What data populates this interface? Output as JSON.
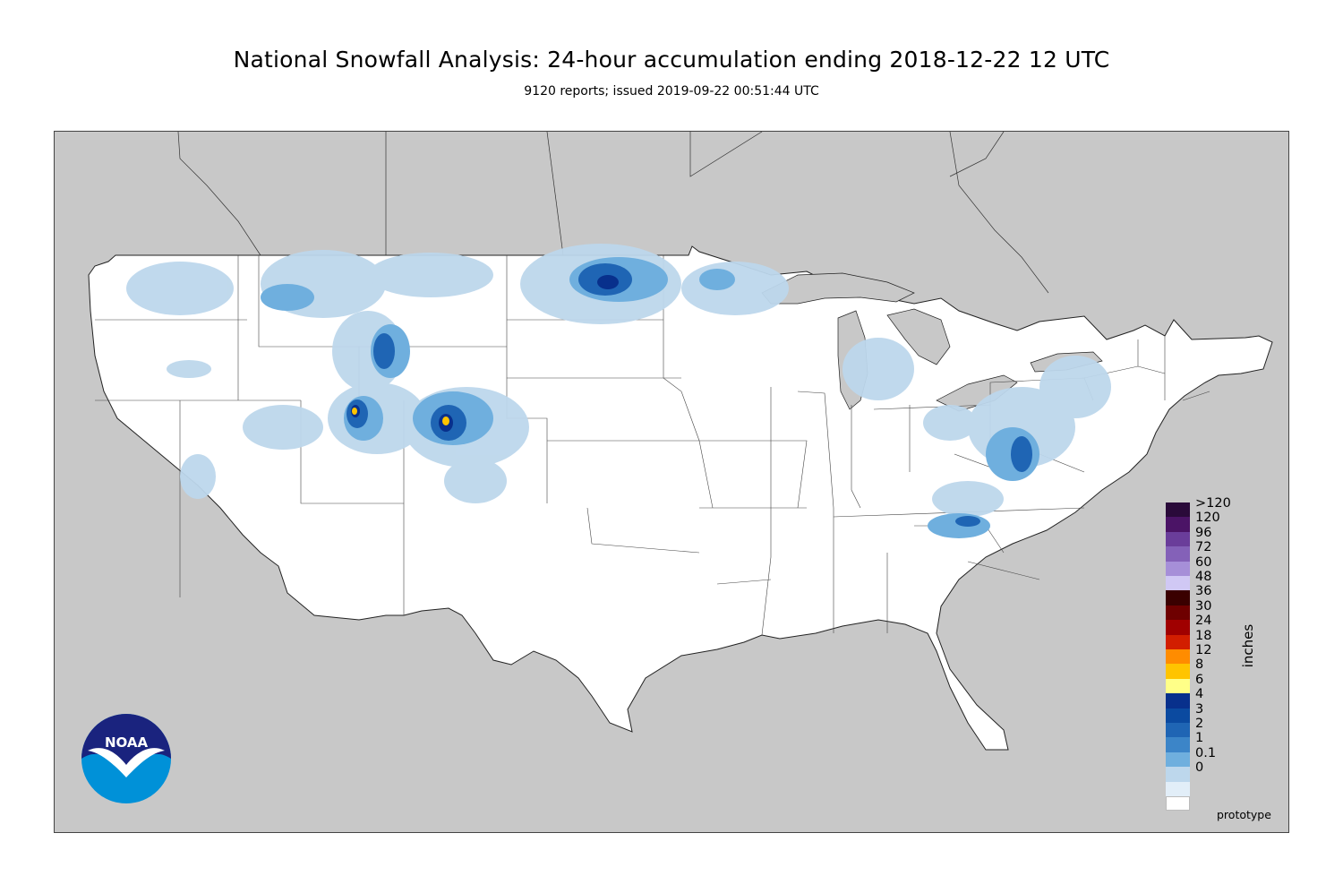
{
  "header": {
    "title": "National Snowfall Analysis: 24-hour accumulation ending 2018-12-22 12 UTC",
    "subtitle": "9120 reports; issued 2019-09-22 00:51:44 UTC"
  },
  "colors": {
    "background_land": "#c8c8c8",
    "conus_fill": "#ffffff",
    "borders": "#333333"
  },
  "legend": {
    "unit": "inches",
    "levels": [
      {
        "label": ">120",
        "color": "#2a0a3a"
      },
      {
        "label": "120",
        "color": "#4b1466"
      },
      {
        "label": "96",
        "color": "#6a3d9a"
      },
      {
        "label": "72",
        "color": "#8461b8"
      },
      {
        "label": "60",
        "color": "#a68fd8"
      },
      {
        "label": "48",
        "color": "#d0c8f4"
      },
      {
        "label": "36",
        "color": "#3a0000"
      },
      {
        "label": "30",
        "color": "#6e0000"
      },
      {
        "label": "24",
        "color": "#a00000"
      },
      {
        "label": "18",
        "color": "#d21e00"
      },
      {
        "label": "12",
        "color": "#ff8c00"
      },
      {
        "label": "8",
        "color": "#ffc400"
      },
      {
        "label": "6",
        "color": "#ffff88"
      },
      {
        "label": "4",
        "color": "#08308c"
      },
      {
        "label": "3",
        "color": "#0b4aa0"
      },
      {
        "label": "2",
        "color": "#1f65b4"
      },
      {
        "label": "1",
        "color": "#3c85c8"
      },
      {
        "label": "0.1",
        "color": "#6fafde"
      },
      {
        "label": "0",
        "color": "#bdd7ec"
      },
      {
        "label": "",
        "color": "#e2eef8"
      },
      {
        "label": "",
        "color": "#ffffff"
      }
    ]
  },
  "footer": {
    "note": "prototype",
    "logo_text": "NOAA"
  },
  "icons": {
    "logo": "noaa-logo-icon"
  }
}
